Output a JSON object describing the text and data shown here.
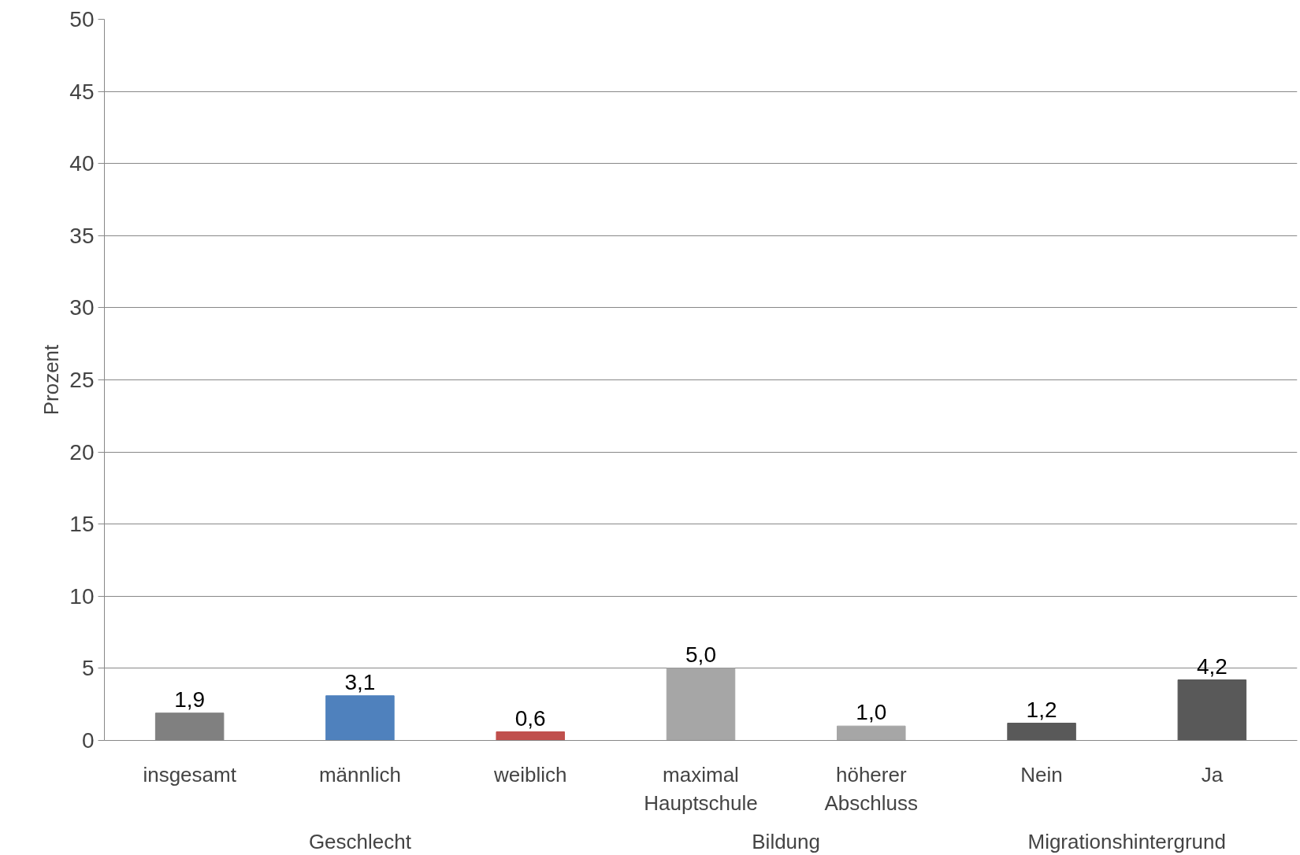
{
  "chart_data": {
    "type": "bar",
    "ylabel": "Prozent",
    "categories": [
      "insgesamt",
      "männlich",
      "weiblich",
      "maximal\nHauptschule",
      "höherer\nAbschluss",
      "Nein",
      "Ja"
    ],
    "values": [
      1.9,
      3.1,
      0.6,
      5.0,
      1.0,
      1.2,
      4.2
    ],
    "colors": [
      "#808080",
      "#4f81bd",
      "#c0504d",
      "#a6a6a6",
      "#a6a6a6",
      "#595959",
      "#595959"
    ],
    "value_labels": [
      "1,9",
      "3,1",
      "0,6",
      "5,0",
      "1,0",
      "1,2",
      "4,2"
    ],
    "ylim": [
      0,
      50
    ],
    "yticks": [
      0,
      5,
      10,
      15,
      20,
      25,
      30,
      35,
      40,
      45,
      50
    ],
    "grid": "y",
    "annotations": [
      "Geschlecht",
      "Bildung",
      "Migrationshintergrund"
    ]
  }
}
